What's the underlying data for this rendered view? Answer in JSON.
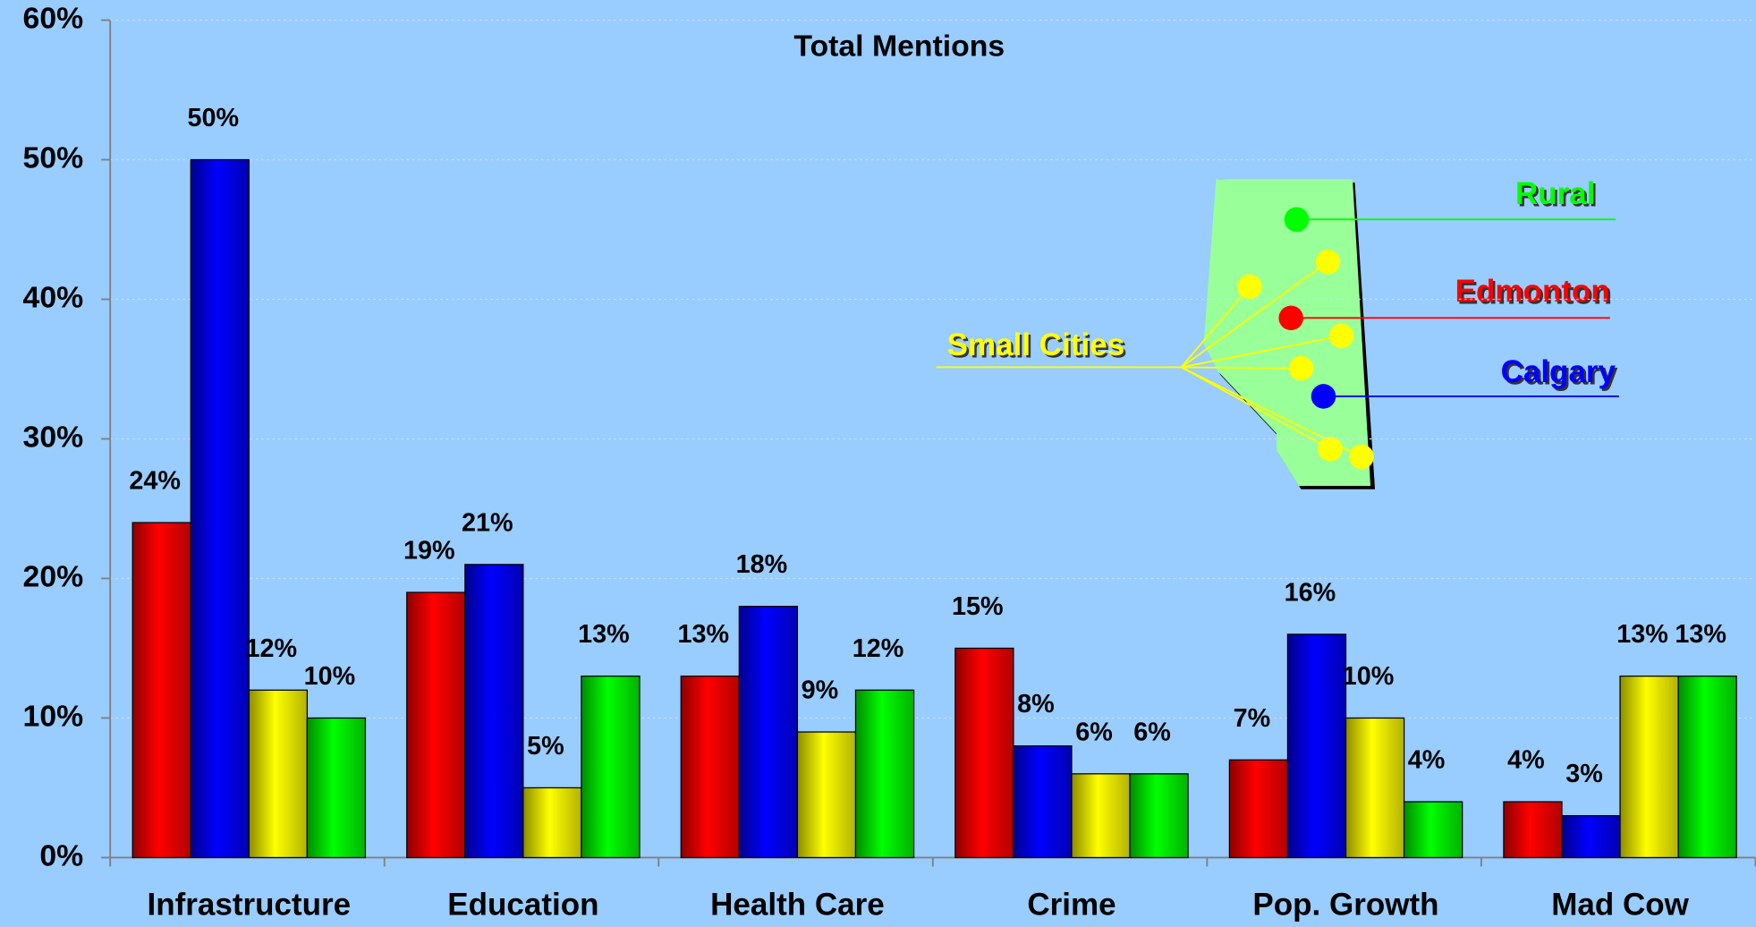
{
  "chart_data": {
    "type": "bar",
    "title": "Total Mentions",
    "categories": [
      "Infrastructure",
      "Education",
      "Health Care",
      "Crime",
      "Pop. Growth",
      "Mad Cow"
    ],
    "series": [
      {
        "name": "Edmonton",
        "color": "#ff0000",
        "values": [
          24,
          19,
          13,
          15,
          7,
          4
        ],
        "value_labels": [
          "24%",
          "19%",
          "13%",
          "15%",
          "7%",
          "4%"
        ]
      },
      {
        "name": "Calgary",
        "color": "#0000ff",
        "values": [
          50,
          21,
          18,
          8,
          16,
          3
        ],
        "value_labels": [
          "50%",
          "21%",
          "18%",
          "8%",
          "16%",
          "3%"
        ]
      },
      {
        "name": "Small Cities",
        "color": "#ffff00",
        "values": [
          12,
          5,
          9,
          6,
          10,
          13
        ],
        "value_labels": [
          "12%",
          "5%",
          "9%",
          "6%",
          "10%",
          "13%"
        ]
      },
      {
        "name": "Rural",
        "color": "#00ff00",
        "values": [
          10,
          13,
          12,
          6,
          4,
          13
        ],
        "value_labels": [
          "10%",
          "13%",
          "12%",
          "6%",
          "4%",
          "13%"
        ]
      }
    ],
    "ylim": [
      0,
      60
    ],
    "yticks": [
      {
        "value": 0,
        "label": "0%"
      },
      {
        "value": 10,
        "label": "10%"
      },
      {
        "value": 20,
        "label": "20%"
      },
      {
        "value": 30,
        "label": "30%"
      },
      {
        "value": 40,
        "label": "40%"
      },
      {
        "value": 50,
        "label": "50%"
      },
      {
        "value": 60,
        "label": "60%"
      }
    ],
    "grid": true
  }
}
